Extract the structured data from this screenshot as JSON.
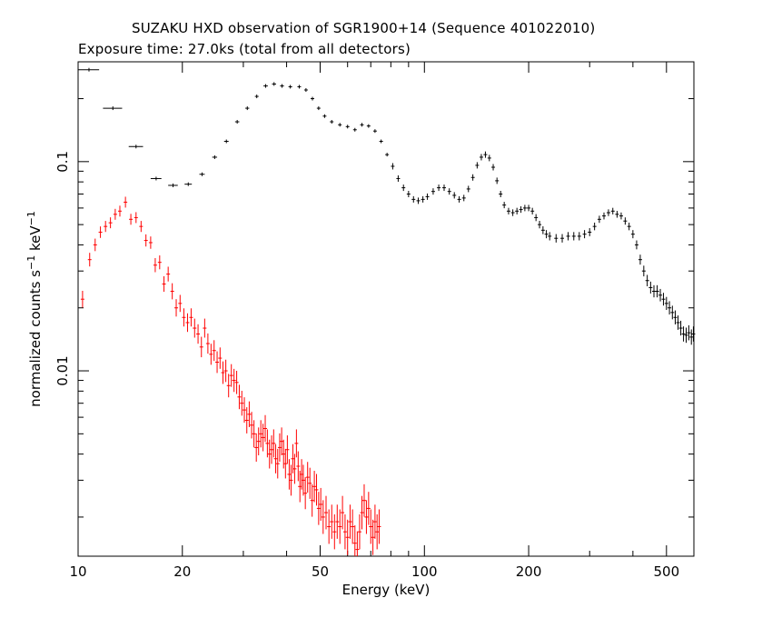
{
  "chart_data": {
    "type": "scatter",
    "title": "SUZAKU HXD observation of SGR1900+14 (Sequence 401022010)",
    "subtitle": "Exposure time: 27.0ks (total from all detectors)",
    "xlabel": "Energy (keV)",
    "ylabel_main": "normalized counts s",
    "ylabel_exp1": "−1",
    "ylabel_mid": " keV",
    "ylabel_exp2": "−1",
    "xscale": "log",
    "yscale": "log",
    "xlim": [
      10,
      600
    ],
    "ylim": [
      0.0013,
      0.3
    ],
    "xticks": [
      10,
      20,
      50,
      100,
      200,
      500
    ],
    "xtick_labels": [
      "10",
      "20",
      "50",
      "100",
      "200",
      "500"
    ],
    "yticks": [
      0.01,
      0.1
    ],
    "ytick_labels": [
      "0.01",
      "0.1"
    ],
    "grid": false,
    "legend": "none",
    "series": [
      {
        "color": "#000000",
        "points": [
          [
            10.75,
            0.275,
            0.75
          ],
          [
            12.6,
            0.18,
            0.8
          ],
          [
            14.7,
            0.118,
            0.7
          ],
          [
            16.8,
            0.083,
            0.6
          ],
          [
            18.8,
            0.077,
            0.6
          ],
          [
            20.8,
            0.078,
            0.5
          ],
          [
            22.8,
            0.087,
            0.4
          ],
          [
            24.8,
            0.105,
            0.4
          ],
          [
            26.8,
            0.125,
            0.4
          ],
          [
            28.8,
            0.155,
            0.4
          ],
          [
            30.8,
            0.18,
            0.4
          ],
          [
            32.8,
            0.205,
            0.4
          ],
          [
            34.8,
            0.23,
            0.5
          ],
          [
            36.8,
            0.235,
            0.5
          ],
          [
            38.8,
            0.23,
            0.5
          ],
          [
            41,
            0.228,
            0.5
          ],
          [
            43.5,
            0.228,
            0.5
          ],
          [
            45.5,
            0.22,
            0.4
          ],
          [
            47.5,
            0.2,
            0.4
          ],
          [
            49.5,
            0.18,
            0.4
          ],
          [
            51.5,
            0.165,
            0.4
          ],
          [
            54,
            0.155,
            0.4
          ],
          [
            57,
            0.15,
            0.4
          ],
          [
            60,
            0.147,
            0.4
          ],
          [
            63,
            0.142,
            0.4
          ],
          [
            66,
            0.15,
            0.4
          ],
          [
            69,
            0.148,
            0.4
          ],
          [
            72,
            0.14,
            0.4
          ],
          [
            75,
            0.125,
            0.4
          ],
          [
            78,
            0.108,
            0.4
          ],
          [
            81,
            0.095,
            0.4
          ],
          [
            84,
            0.083,
            0.4
          ],
          [
            87,
            0.075,
            0.4
          ],
          [
            90,
            0.07,
            0.4
          ],
          [
            93,
            0.066,
            0.4
          ],
          [
            96,
            0.065,
            0.4
          ],
          [
            99,
            0.066,
            0.4
          ],
          [
            102,
            0.068,
            0.4
          ],
          [
            106,
            0.072,
            0.4
          ],
          [
            110,
            0.075,
            0.4
          ],
          [
            114,
            0.075,
            0.4
          ],
          [
            118,
            0.072,
            0.4
          ],
          [
            122,
            0.069,
            0.4
          ],
          [
            126,
            0.066,
            0.4
          ],
          [
            130,
            0.067,
            0.4
          ],
          [
            134,
            0.074,
            0.4
          ],
          [
            138,
            0.084,
            0.4
          ],
          [
            142,
            0.096,
            0.4
          ],
          [
            146,
            0.105,
            0.4
          ],
          [
            150,
            0.108,
            0.4
          ],
          [
            154,
            0.104,
            0.4
          ],
          [
            158,
            0.094,
            0.4
          ],
          [
            162,
            0.081,
            0.4
          ],
          [
            166,
            0.07,
            0.4
          ],
          [
            170,
            0.062,
            0.4
          ],
          [
            175,
            0.058,
            0.4
          ],
          [
            180,
            0.057,
            0.4
          ],
          [
            185,
            0.058,
            0.4
          ],
          [
            190,
            0.059,
            0.4
          ],
          [
            195,
            0.06,
            0.4
          ],
          [
            200,
            0.06,
            0.4
          ],
          [
            205,
            0.058,
            0.4
          ],
          [
            210,
            0.054,
            0.4
          ],
          [
            215,
            0.05,
            0.4
          ],
          [
            220,
            0.047,
            0.4
          ],
          [
            225,
            0.045,
            0.4
          ],
          [
            230,
            0.044,
            0.4
          ],
          [
            240,
            0.043,
            0.4
          ],
          [
            250,
            0.043,
            0.4
          ],
          [
            260,
            0.044,
            0.4
          ],
          [
            270,
            0.044,
            0.4
          ],
          [
            280,
            0.044,
            0.4
          ],
          [
            290,
            0.045,
            0.4
          ],
          [
            300,
            0.046,
            0.4
          ],
          [
            310,
            0.049,
            0.4
          ],
          [
            320,
            0.053,
            0.4
          ],
          [
            330,
            0.055,
            0.4
          ],
          [
            340,
            0.057,
            0.4
          ],
          [
            350,
            0.058,
            0.4
          ],
          [
            360,
            0.056,
            0.4
          ],
          [
            370,
            0.055,
            0.4
          ],
          [
            380,
            0.052,
            0.4
          ],
          [
            390,
            0.049,
            0.4
          ],
          [
            400,
            0.045,
            0.4
          ],
          [
            410,
            0.04,
            0.4
          ],
          [
            420,
            0.034,
            0.4
          ],
          [
            430,
            0.03,
            0.4
          ],
          [
            440,
            0.027,
            0.4
          ],
          [
            450,
            0.025,
            0.4
          ],
          [
            460,
            0.024,
            0.4
          ],
          [
            470,
            0.024,
            0.4
          ],
          [
            480,
            0.023,
            0.4
          ],
          [
            490,
            0.022,
            0.4
          ],
          [
            500,
            0.021,
            0.4
          ],
          [
            510,
            0.02,
            0.4
          ],
          [
            520,
            0.019,
            0.4
          ],
          [
            530,
            0.018,
            0.4
          ],
          [
            540,
            0.017,
            0.4
          ],
          [
            550,
            0.016,
            0.4
          ],
          [
            560,
            0.015,
            0.4
          ],
          [
            570,
            0.0148,
            0.4
          ],
          [
            580,
            0.0152,
            0.4
          ],
          [
            590,
            0.0145,
            0.4
          ],
          [
            598,
            0.015,
            0.4
          ]
        ]
      },
      {
        "color": "#ff0000",
        "points": [
          [
            10.3,
            0.022,
            0.1
          ],
          [
            10.8,
            0.034,
            0.1
          ],
          [
            11.2,
            0.04,
            0.1
          ],
          [
            11.6,
            0.046,
            0.1
          ],
          [
            12.0,
            0.049,
            0.1
          ],
          [
            12.4,
            0.051,
            0.1
          ],
          [
            12.8,
            0.056,
            0.1
          ],
          [
            13.2,
            0.058,
            0.1
          ],
          [
            13.7,
            0.064,
            0.1
          ],
          [
            14.2,
            0.053,
            0.1
          ],
          [
            14.7,
            0.054,
            0.1
          ],
          [
            15.2,
            0.049,
            0.1
          ],
          [
            15.7,
            0.042,
            0.1
          ],
          [
            16.2,
            0.041,
            0.1
          ],
          [
            16.7,
            0.032,
            0.1
          ],
          [
            17.2,
            0.033,
            0.1
          ],
          [
            17.7,
            0.026,
            0.1
          ],
          [
            18.2,
            0.029,
            0.1
          ],
          [
            18.7,
            0.024,
            0.1
          ],
          [
            19.2,
            0.02,
            0.1
          ],
          [
            19.7,
            0.021,
            0.1
          ],
          [
            20.2,
            0.018,
            0.1
          ],
          [
            20.7,
            0.017,
            0.1
          ],
          [
            21.2,
            0.018,
            0.1
          ],
          [
            21.7,
            0.016,
            0.1
          ],
          [
            22.2,
            0.015,
            0.1
          ],
          [
            22.7,
            0.013,
            0.1
          ],
          [
            23.2,
            0.016,
            0.1
          ],
          [
            23.7,
            0.0135,
            0.1
          ],
          [
            24.2,
            0.012,
            0.1
          ],
          [
            24.7,
            0.0125,
            0.1
          ],
          [
            25.2,
            0.011,
            0.1
          ],
          [
            25.7,
            0.0115,
            0.1
          ],
          [
            26.2,
            0.0098,
            0.1
          ],
          [
            26.7,
            0.01,
            0.1
          ],
          [
            27.2,
            0.0085,
            0.1
          ],
          [
            27.7,
            0.0095,
            0.1
          ],
          [
            28.2,
            0.009,
            0.1
          ],
          [
            28.7,
            0.0088,
            0.1
          ],
          [
            29.2,
            0.0075,
            0.1
          ],
          [
            29.7,
            0.007,
            0.1
          ],
          [
            30.2,
            0.0065,
            0.1
          ],
          [
            30.7,
            0.0058,
            0.1
          ],
          [
            31.2,
            0.0062,
            0.1
          ],
          [
            31.7,
            0.0055,
            0.1
          ],
          [
            32.2,
            0.005,
            0.1
          ],
          [
            32.7,
            0.0043,
            0.1
          ],
          [
            33.2,
            0.0046,
            0.1
          ],
          [
            33.7,
            0.005,
            0.1
          ],
          [
            34.2,
            0.0048,
            0.1
          ],
          [
            34.7,
            0.0053,
            0.1
          ],
          [
            35.2,
            0.0045,
            0.1
          ],
          [
            35.7,
            0.004,
            0.1
          ],
          [
            36.2,
            0.0042,
            0.1
          ],
          [
            36.7,
            0.0045,
            0.1
          ],
          [
            37.2,
            0.0038,
            0.1
          ],
          [
            37.7,
            0.0036,
            0.1
          ],
          [
            38.2,
            0.0043,
            0.1
          ],
          [
            38.7,
            0.0046,
            0.1
          ],
          [
            39.2,
            0.004,
            0.1
          ],
          [
            39.7,
            0.0036,
            0.1
          ],
          [
            40.2,
            0.0042,
            0.1
          ],
          [
            40.7,
            0.0032,
            0.1
          ],
          [
            41.2,
            0.003,
            0.1
          ],
          [
            41.7,
            0.0038,
            0.1
          ],
          [
            42.2,
            0.0034,
            0.1
          ],
          [
            42.7,
            0.0045,
            0.1
          ],
          [
            43.2,
            0.0035,
            0.1
          ],
          [
            43.7,
            0.0028,
            0.1
          ],
          [
            44.2,
            0.0032,
            0.1
          ],
          [
            44.7,
            0.003,
            0.1
          ],
          [
            45.3,
            0.0026,
            0.1
          ],
          [
            46.0,
            0.0031,
            0.1
          ],
          [
            46.7,
            0.0029,
            0.1
          ],
          [
            47.4,
            0.0024,
            0.1
          ],
          [
            48.1,
            0.0028,
            0.1
          ],
          [
            48.8,
            0.0027,
            0.1
          ],
          [
            49.5,
            0.0022,
            0.1
          ],
          [
            50.2,
            0.0023,
            0.1
          ],
          [
            51,
            0.002,
            0.1
          ],
          [
            52,
            0.0021,
            0.1
          ],
          [
            53,
            0.0018,
            0.1
          ],
          [
            54,
            0.0019,
            0.1
          ],
          [
            55,
            0.0017,
            0.1
          ],
          [
            56,
            0.0019,
            0.1
          ],
          [
            57,
            0.0018,
            0.1
          ],
          [
            58,
            0.0021,
            0.1
          ],
          [
            59,
            0.0017,
            0.1
          ],
          [
            60,
            0.0016,
            0.1
          ],
          [
            61,
            0.0019,
            0.1
          ],
          [
            62,
            0.0018,
            0.1
          ],
          [
            63,
            0.0015,
            0.1
          ],
          [
            64,
            0.0014,
            0.1
          ],
          [
            65,
            0.0017,
            0.1
          ],
          [
            66,
            0.0021,
            0.1
          ],
          [
            67,
            0.0024,
            0.1
          ],
          [
            68,
            0.002,
            0.1
          ],
          [
            69,
            0.0022,
            0.1
          ],
          [
            70,
            0.0018,
            0.1
          ],
          [
            71,
            0.0016,
            0.1
          ],
          [
            72,
            0.0019,
            0.1
          ],
          [
            73,
            0.0017,
            0.1
          ],
          [
            74,
            0.0018,
            0.1
          ]
        ]
      }
    ]
  }
}
